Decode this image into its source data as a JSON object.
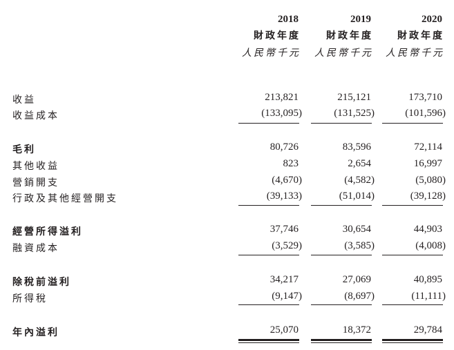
{
  "header": {
    "columns": [
      {
        "year": "2018",
        "period": "財政年度",
        "unit": "人民幣千元"
      },
      {
        "year": "2019",
        "period": "財政年度",
        "unit": "人民幣千元"
      },
      {
        "year": "2020",
        "period": "財政年度",
        "unit": "人民幣千元"
      }
    ]
  },
  "rows": [
    {
      "label": "收益",
      "bold": false,
      "values": [
        "213,821",
        "215,121",
        "173,710"
      ]
    },
    {
      "label": "收益成本",
      "bold": false,
      "values": [
        "(133,095)",
        "(131,525)",
        "(101,596)"
      ]
    },
    {
      "label": "毛利",
      "bold": true,
      "values": [
        "80,726",
        "83,596",
        "72,114"
      ]
    },
    {
      "label": "其他收益",
      "bold": false,
      "values": [
        "823",
        "2,654",
        "16,997"
      ]
    },
    {
      "label": "營銷開支",
      "bold": false,
      "values": [
        "(4,670)",
        "(4,582)",
        "(5,080)"
      ]
    },
    {
      "label": "行政及其他經營開支",
      "bold": false,
      "values": [
        "(39,133)",
        "(51,014)",
        "(39,128)"
      ]
    },
    {
      "label": "經營所得溢利",
      "bold": true,
      "values": [
        "37,746",
        "30,654",
        "44,903"
      ]
    },
    {
      "label": "融資成本",
      "bold": false,
      "values": [
        "(3,529)",
        "(3,585)",
        "(4,008)"
      ]
    },
    {
      "label": "除稅前溢利",
      "bold": true,
      "values": [
        "34,217",
        "27,069",
        "40,895"
      ]
    },
    {
      "label": "所得稅",
      "bold": false,
      "values": [
        "(9,147)",
        "(8,697)",
        "(11,111)"
      ]
    },
    {
      "label": "年內溢利",
      "bold": true,
      "values": [
        "25,070",
        "18,372",
        "29,784"
      ]
    }
  ]
}
